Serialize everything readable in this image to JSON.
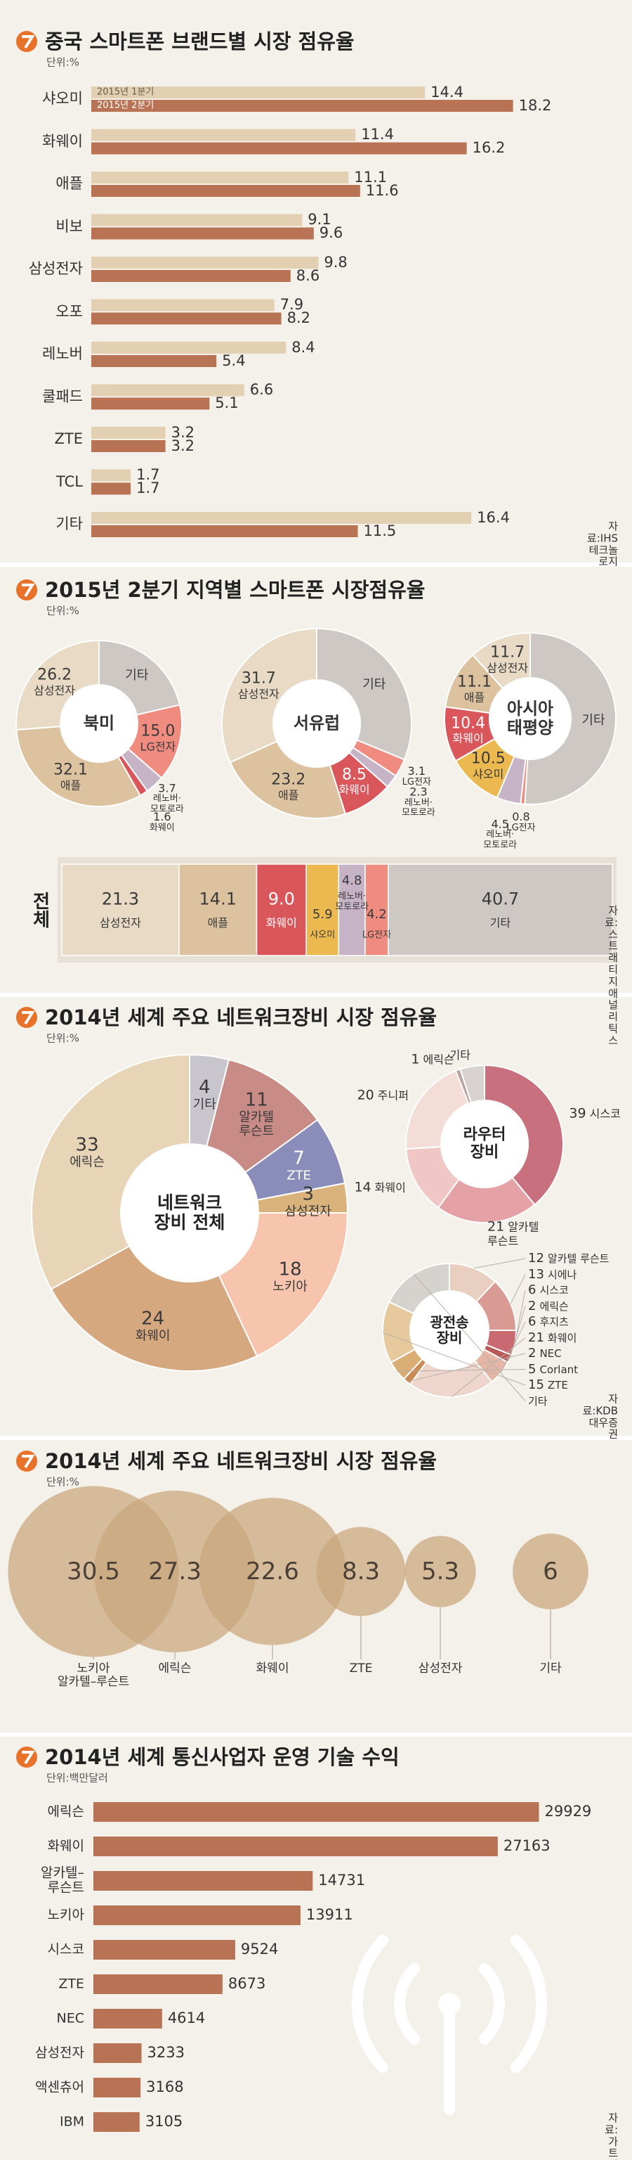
{
  "chart_data": [
    {
      "type": "hbar_grouped",
      "title": "중국 스마트폰 브랜드별 시장 점유율",
      "unit": "단위:%",
      "categories": [
        "샤오미",
        "화웨이",
        "애플",
        "비보",
        "삼성전자",
        "오포",
        "레노버",
        "쿨패드",
        "ZTE",
        "TCL",
        "기타"
      ],
      "series": [
        {
          "name": "2015년 1분기",
          "color": "#e3d0b3",
          "values": [
            14.4,
            11.4,
            11.1,
            9.1,
            9.8,
            7.9,
            8.4,
            6.6,
            3.2,
            1.7,
            16.4
          ]
        },
        {
          "name": "2015년 2분기",
          "color": "#b87354",
          "values": [
            18.2,
            16.2,
            11.6,
            9.6,
            8.6,
            8.2,
            5.4,
            5.1,
            3.2,
            1.7,
            11.5
          ]
        }
      ],
      "source": "자료:IHS테크놀로지"
    },
    {
      "type": "donuts",
      "title": "2015년 2분기 지역별 스마트폰 시장점유율",
      "unit": "단위:%",
      "donuts": [
        {
          "name": "북미",
          "categories": [
            "기타",
            "LG전자",
            "레노버·\n모토로라",
            "화웨이",
            "애플",
            "삼성전자"
          ],
          "values": [
            21.4,
            15,
            3.7,
            1.6,
            32.1,
            26.2
          ],
          "value_labels": [
            null,
            "15.0",
            "3.7",
            "1.6",
            "32.1",
            "26.2"
          ],
          "colors": [
            "#cdc8c3",
            "#ef8b7f",
            "#c7b3c6",
            "#d9565a",
            "#dcc29f",
            "#e8dac4"
          ]
        },
        {
          "name": "서유럽",
          "categories": [
            "기타",
            "LG전자",
            "레노버·\n모토로라",
            "화웨이",
            "애플",
            "삼성전자"
          ],
          "values": [
            31.2,
            3.1,
            2.3,
            8.5,
            23.2,
            31.7
          ],
          "value_labels": [
            null,
            "3.1",
            "2.3",
            "8.5",
            "23.2",
            "31.7"
          ],
          "colors": [
            "#cdc8c3",
            "#ef8b7f",
            "#c7b3c6",
            "#d9565a",
            "#dcc29f",
            "#e8dac4"
          ]
        },
        {
          "name": "아시아\n태평양",
          "categories": [
            "기타",
            "LG전자",
            "레노버·\n모토로라",
            "샤오미",
            "화웨이",
            "애플",
            "삼성전자"
          ],
          "values": [
            51,
            0.8,
            4.5,
            10.5,
            10.4,
            11.1,
            11.7
          ],
          "value_labels": [
            null,
            "0.8",
            "4.5",
            "10.5",
            "10.4",
            "11.1",
            "11.7"
          ],
          "colors": [
            "#cdc8c3",
            "#ef8b7f",
            "#c7b3c6",
            "#ebb94f",
            "#d9565a",
            "#dcc29f",
            "#e8dac4"
          ]
        }
      ],
      "total": {
        "name": "전체",
        "categories": [
          "삼성전자",
          "애플",
          "화웨이",
          "샤오미",
          "레노버·\n모토로라",
          "LG전자",
          "기타"
        ],
        "values": [
          21.3,
          14.1,
          9,
          5.9,
          4.8,
          4.2,
          40.7
        ],
        "value_labels": [
          "21.3",
          "14.1",
          "9.0",
          "5.9",
          "4.8",
          "4.2",
          "40.7"
        ],
        "colors": [
          "#e8dac4",
          "#dcc29f",
          "#d9565a",
          "#ebb94f",
          "#c7b3c6",
          "#ef8b7f",
          "#cdc8c3"
        ]
      },
      "source": "자료:스트래티지 애널리틱스"
    },
    {
      "type": "network",
      "title": "2014년 세계 주요 네트워크장비 시장 점유율",
      "unit": "단위:%",
      "main": {
        "name": "네트워크\n장비 전체",
        "categories": [
          "기타",
          "알카텔\n루슨트",
          "ZTE",
          "삼성전자",
          "노키아",
          "화웨이",
          "에릭슨"
        ],
        "values": [
          4,
          11,
          7,
          3,
          18,
          24,
          33
        ],
        "value_labels": [
          "4",
          "11",
          "7",
          "3",
          "18",
          "24",
          "33"
        ],
        "colors": [
          "#c8c6cc",
          "#c98b86",
          "#8a8cb9",
          "#d9b27c",
          "#f7c4ad",
          "#d6a880",
          "#e8d5b8"
        ]
      },
      "router": {
        "name": "라우터\n장비",
        "categories": [
          "시스코",
          "알카텔\n루슨트",
          "화웨이",
          "주니퍼",
          "에릭슨",
          "기타"
        ],
        "values": [
          39,
          21,
          14,
          20,
          1,
          5
        ],
        "value_labels": [
          "39",
          "21",
          "14",
          "20",
          "1",
          null
        ],
        "colors": [
          "#c9707e",
          "#e4a2a6",
          "#f0c7c4",
          "#f3ddd6",
          "#b9a2a0",
          "#d8d3d0"
        ]
      },
      "optical": {
        "name": "광전송\n장비",
        "categories": [
          "알카텔 루슨트",
          "시에나",
          "시스코",
          "에릭슨",
          "후지츠",
          "화웨이",
          "NEC",
          "Corlant",
          "ZTE",
          "기타"
        ],
        "values": [
          12,
          13,
          6,
          2,
          6,
          21,
          2,
          5,
          15,
          18
        ],
        "value_labels": [
          "12",
          "13",
          "6",
          "2",
          "6",
          "21",
          "2",
          "5",
          "15",
          null
        ],
        "colors": [
          "#e8cfc0",
          "#d99a93",
          "#c96a72",
          "#b95a5a",
          "#e5b6a6",
          "#eed6cc",
          "#c98a55",
          "#d9ad74",
          "#e6c99c",
          "#d6d2cd"
        ]
      },
      "source": "자료:KDB대우증권"
    },
    {
      "type": "bubble",
      "title": "2014년 세계 주요 네트워크장비 시장 점유율",
      "unit": "단위:%",
      "categories": [
        "노키아\n알카텔–루슨트",
        "에릭슨",
        "화웨이",
        "ZTE",
        "삼성전자",
        "기타"
      ],
      "values": [
        30.5,
        27.3,
        22.6,
        8.3,
        5.3,
        6
      ],
      "color": "#c9a67c"
    },
    {
      "type": "hbar",
      "title": "2014년 세계 통신사업자 운영 기술 수익",
      "unit": "단위:백만달러",
      "categories": [
        "에릭슨",
        "화웨이",
        "알카텔–\n루슨트",
        "노키아",
        "시스코",
        "ZTE",
        "NEC",
        "삼성전자",
        "액센츄어",
        "IBM"
      ],
      "values": [
        29929,
        27163,
        14731,
        13911,
        9524,
        8673,
        4614,
        3233,
        3168,
        3105
      ],
      "color": "#b87354",
      "source": "자료:가트너"
    }
  ]
}
